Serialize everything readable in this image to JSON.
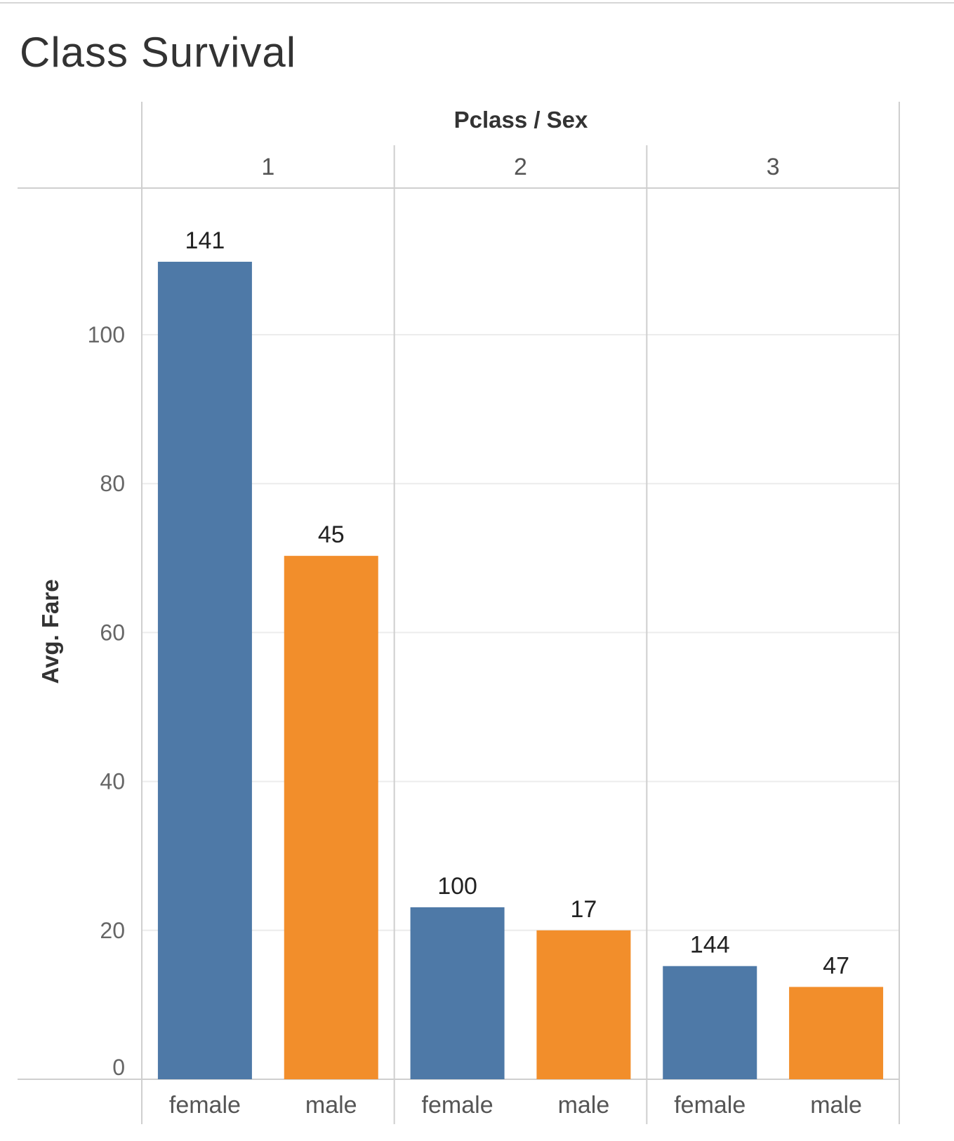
{
  "chart_data": {
    "type": "bar",
    "title": "Class Survival",
    "column_header_title": "Pclass / Sex",
    "ylabel": "Avg. Fare",
    "ylim": [
      0,
      120
    ],
    "y_ticks": [
      0,
      20,
      40,
      60,
      80,
      100
    ],
    "grid": true,
    "groups": [
      {
        "name": "1",
        "bars": [
          {
            "category": "female",
            "value": 109.8,
            "label": "141",
            "color": "#4e79a7"
          },
          {
            "category": "male",
            "value": 70.3,
            "label": "45",
            "color": "#f28e2b"
          }
        ]
      },
      {
        "name": "2",
        "bars": [
          {
            "category": "female",
            "value": 23.1,
            "label": "100",
            "color": "#4e79a7"
          },
          {
            "category": "male",
            "value": 20.0,
            "label": "17",
            "color": "#f28e2b"
          }
        ]
      },
      {
        "name": "3",
        "bars": [
          {
            "category": "female",
            "value": 15.2,
            "label": "144",
            "color": "#4e79a7"
          },
          {
            "category": "male",
            "value": 12.4,
            "label": "47",
            "color": "#f28e2b"
          }
        ]
      }
    ]
  }
}
